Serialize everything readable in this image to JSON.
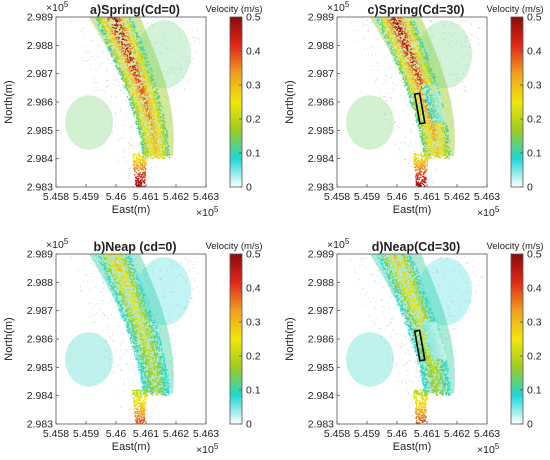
{
  "chart_data": [
    {
      "type": "heatmap",
      "panel": "a",
      "title": "a)Spring(Cd=0)",
      "tide": "spring",
      "cd": 0,
      "structure": false,
      "xlabel": "East(m)",
      "ylabel": "North(m)",
      "xticks": [
        "5.458",
        "5.459",
        "5.46",
        "5.461",
        "5.462",
        "5.463"
      ],
      "yticks": [
        "2.983",
        "2.984",
        "2.985",
        "2.986",
        "2.987",
        "2.988",
        "2.989"
      ],
      "xexp": "×10",
      "yexp": "×10",
      "exp_power": "5",
      "colorbar_label": "Velocity (m/s)",
      "colorbar_ticks": [
        "0",
        "0.1",
        "0.2",
        "0.3",
        "0.4",
        "0.5"
      ],
      "clim": [
        0,
        0.5
      ],
      "max_velocity": 0.5
    },
    {
      "type": "heatmap",
      "panel": "c",
      "title": "c)Spring(Cd=30)",
      "tide": "spring",
      "cd": 30,
      "structure": true,
      "xlabel": "East(m)",
      "ylabel": "North(m)",
      "xticks": [
        "5.458",
        "5.459",
        "5.46",
        "5.461",
        "5.462",
        "5.463"
      ],
      "yticks": [
        "2.983",
        "2.984",
        "2.985",
        "2.986",
        "2.987",
        "2.988",
        "2.989"
      ],
      "xexp": "×10",
      "yexp": "×10",
      "exp_power": "5",
      "colorbar_label": "Velocity (m/s)",
      "colorbar_ticks": [
        "0",
        "0.1",
        "0.2",
        "0.3",
        "0.4",
        "0.5"
      ],
      "clim": [
        0,
        0.5
      ],
      "max_velocity": 0.5
    },
    {
      "type": "heatmap",
      "panel": "b",
      "title": "b)Neap (cd=0)",
      "tide": "neap",
      "cd": 0,
      "structure": false,
      "xlabel": "East(m)",
      "ylabel": "North(m)",
      "xticks": [
        "5.458",
        "5.459",
        "5.46",
        "5.461",
        "5.462",
        "5.463"
      ],
      "yticks": [
        "2.983",
        "2.984",
        "2.985",
        "2.986",
        "2.987",
        "2.988",
        "2.989"
      ],
      "xexp": "×10",
      "yexp": "×10",
      "exp_power": "5",
      "colorbar_label": "Velocity (m/s)",
      "colorbar_ticks": [
        "0",
        "0.1",
        "0.2",
        "0.3",
        "0.4",
        "0.5"
      ],
      "clim": [
        0,
        0.5
      ],
      "max_velocity": 0.3
    },
    {
      "type": "heatmap",
      "panel": "d",
      "title": "d)Neap(Cd=30)",
      "tide": "neap",
      "cd": 30,
      "structure": true,
      "xlabel": "East(m)",
      "ylabel": "North(m)",
      "xticks": [
        "5.458",
        "5.459",
        "5.46",
        "5.461",
        "5.462",
        "5.463"
      ],
      "yticks": [
        "2.983",
        "2.984",
        "2.985",
        "2.986",
        "2.987",
        "2.988",
        "2.989"
      ],
      "xexp": "×10",
      "yexp": "×10",
      "exp_power": "5",
      "colorbar_label": "Velocity (m/s)",
      "colorbar_ticks": [
        "0",
        "0.1",
        "0.2",
        "0.3",
        "0.4",
        "0.5"
      ],
      "clim": [
        0,
        0.5
      ],
      "max_velocity": 0.3
    }
  ],
  "colormap": [
    "#ffffff",
    "#20d6d6",
    "#9ccc20",
    "#f2e60a",
    "#f0a020",
    "#e02818",
    "#8c0a0a"
  ]
}
